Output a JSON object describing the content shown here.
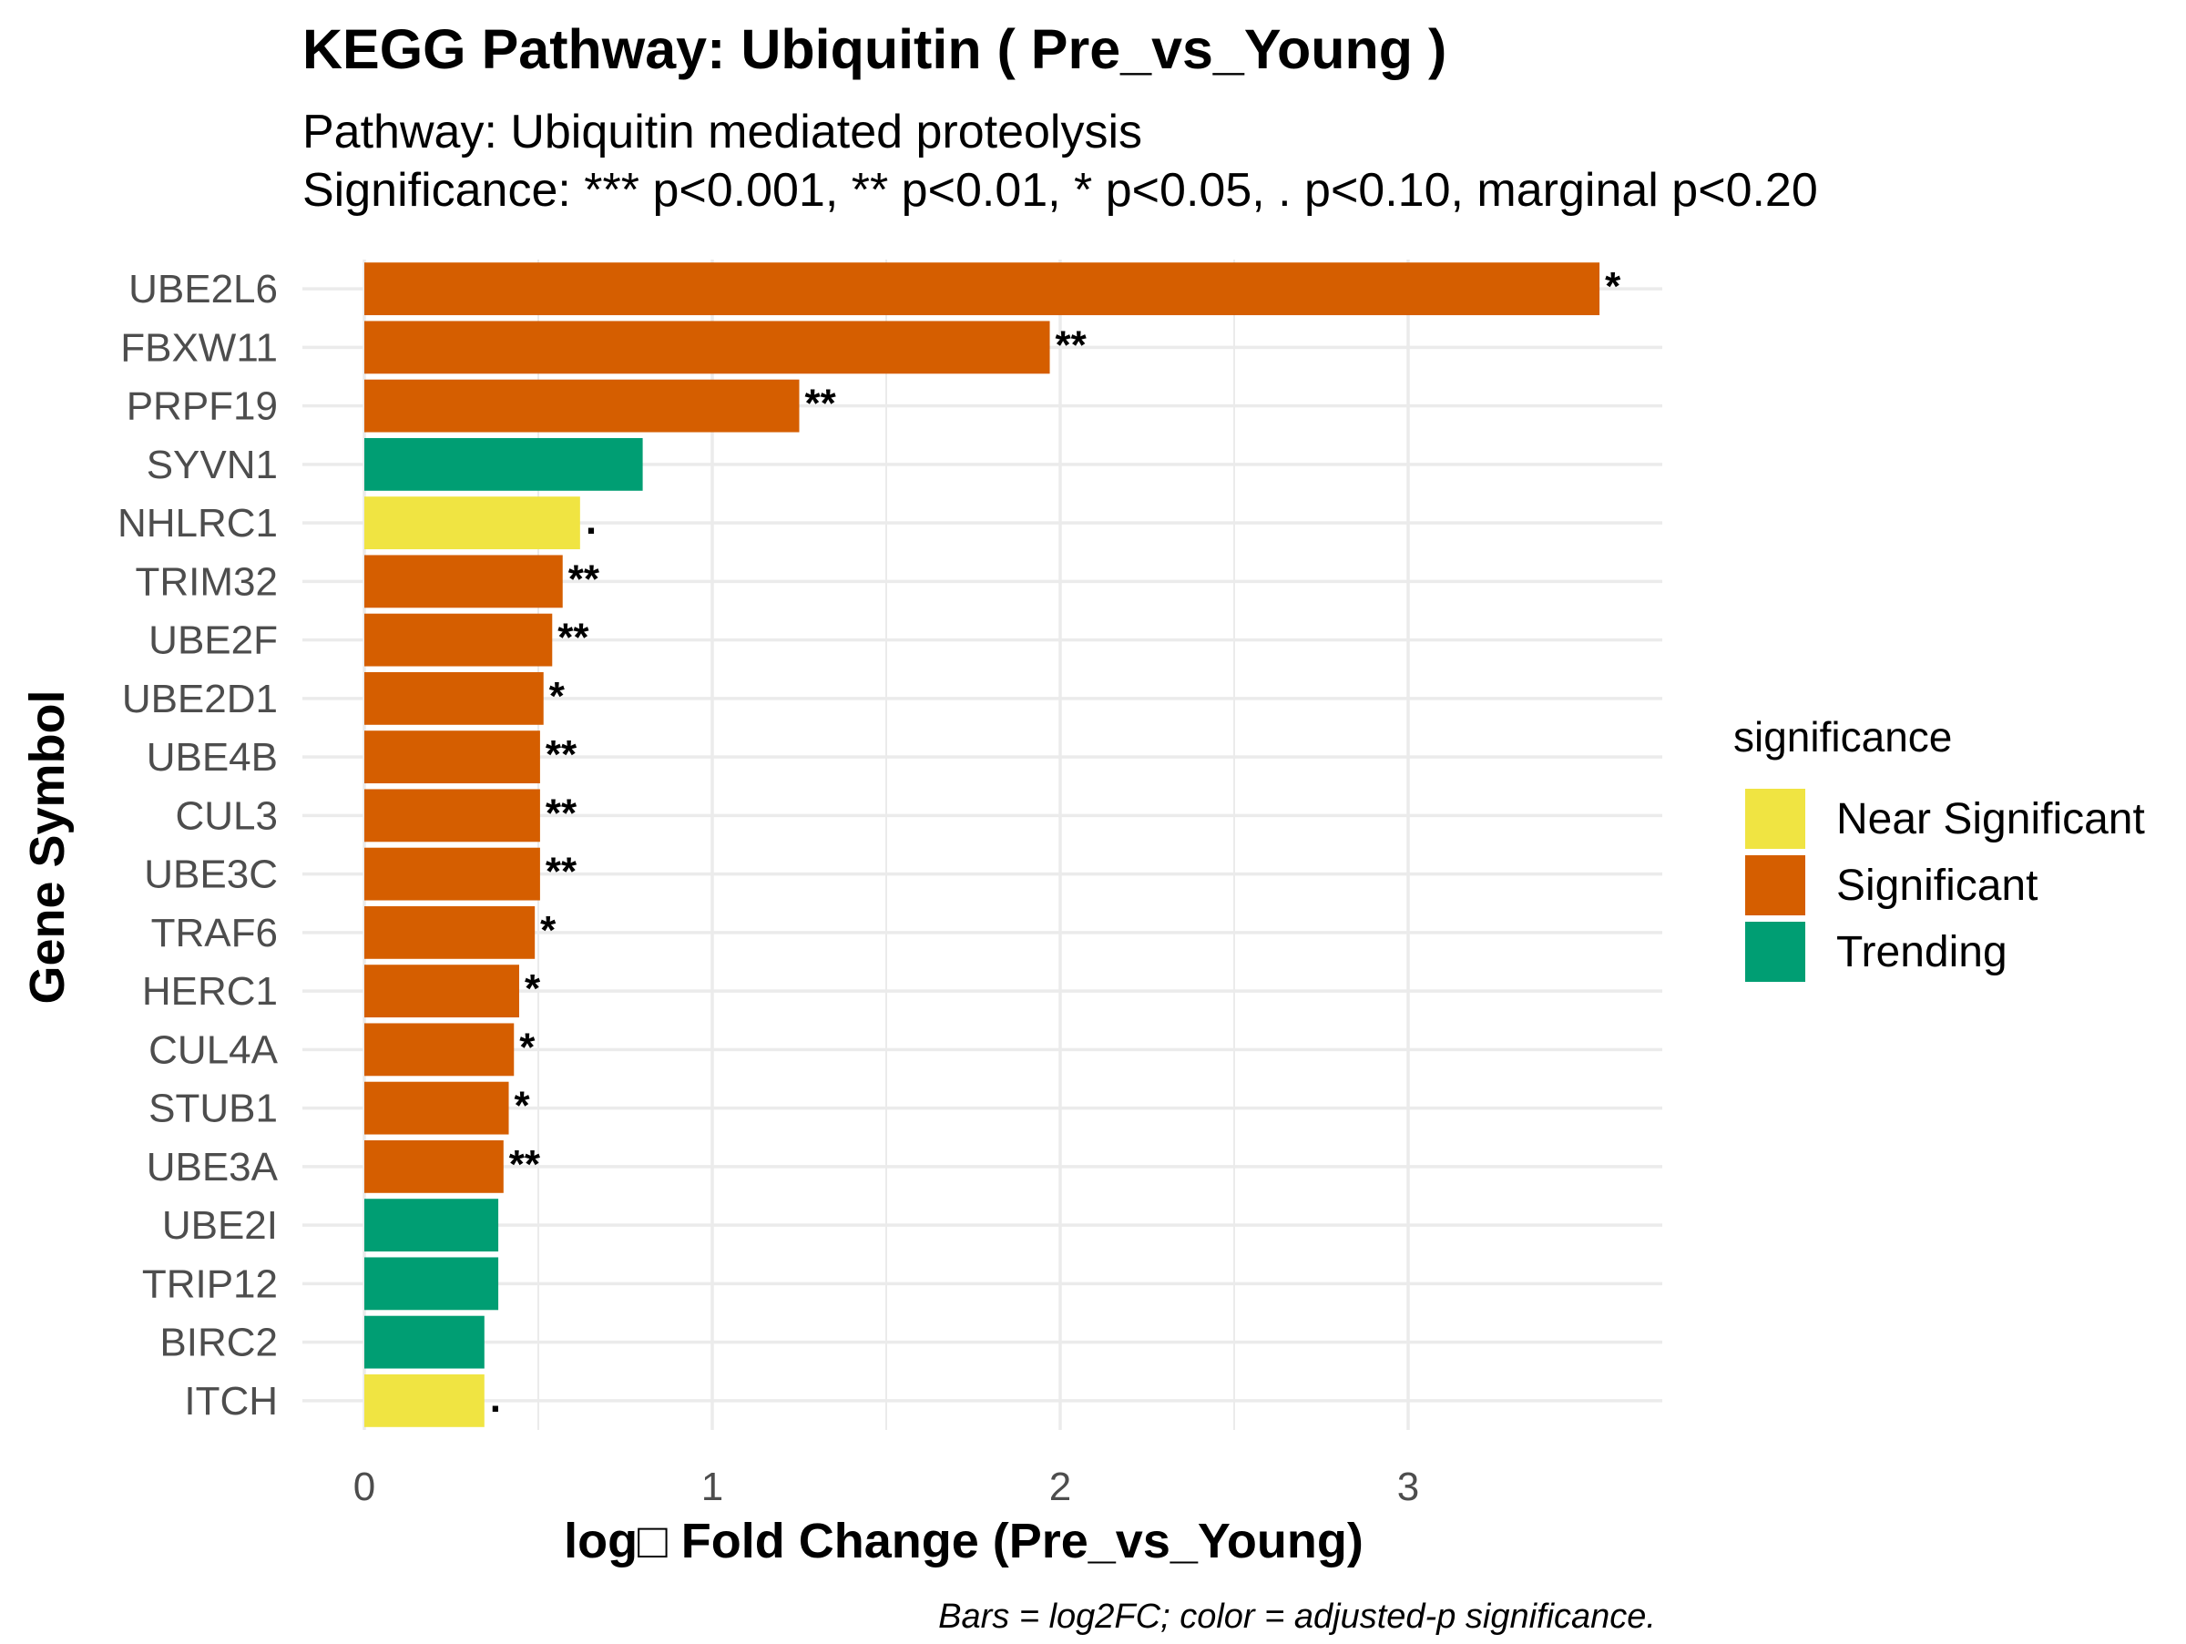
{
  "chart_data": {
    "type": "bar",
    "orientation": "horizontal",
    "title": "KEGG Pathway: Ubiquitin ( Pre_vs_Young )",
    "subtitle_lines": [
      "Pathway: Ubiquitin mediated proteolysis",
      "Significance: *** p<0.001, ** p<0.01, * p<0.05, . p<0.10, marginal p<0.20"
    ],
    "xlabel": "log□ Fold Change (Pre_vs_Young)",
    "ylabel": "Gene Symbol",
    "caption": "Bars = log2FC; color = adjusted-p significance.",
    "xlim": [
      0,
      3.7
    ],
    "xticks": [
      0,
      1,
      2,
      3
    ],
    "grid": true,
    "legend": {
      "title": "significance",
      "position": "right",
      "entries": [
        {
          "label": "Near Significant",
          "color": "#F0E442"
        },
        {
          "label": "Significant",
          "color": "#D55E00"
        },
        {
          "label": "Trending",
          "color": "#009E73"
        }
      ]
    },
    "categories": [
      "UBE2L6",
      "FBXW11",
      "PRPF19",
      "SYVN1",
      "NHLRC1",
      "TRIM32",
      "UBE2F",
      "UBE2D1",
      "UBE4B",
      "CUL3",
      "UBE3C",
      "TRAF6",
      "HERC1",
      "CUL4A",
      "STUB1",
      "UBE3A",
      "UBE2I",
      "TRIP12",
      "BIRC2",
      "ITCH"
    ],
    "values": [
      3.55,
      1.97,
      1.25,
      0.8,
      0.62,
      0.57,
      0.54,
      0.515,
      0.505,
      0.505,
      0.505,
      0.49,
      0.445,
      0.43,
      0.415,
      0.4,
      0.385,
      0.385,
      0.345,
      0.345
    ],
    "significance": [
      "Significant",
      "Significant",
      "Significant",
      "Trending",
      "Near Significant",
      "Significant",
      "Significant",
      "Significant",
      "Significant",
      "Significant",
      "Significant",
      "Significant",
      "Significant",
      "Significant",
      "Significant",
      "Significant",
      "Trending",
      "Trending",
      "Trending",
      "Near Significant"
    ],
    "stars": [
      "*",
      "**",
      "**",
      "",
      ".",
      "**",
      "**",
      "*",
      "**",
      "**",
      "**",
      "*",
      "*",
      "*",
      "*",
      "**",
      "",
      "",
      "",
      "."
    ]
  }
}
